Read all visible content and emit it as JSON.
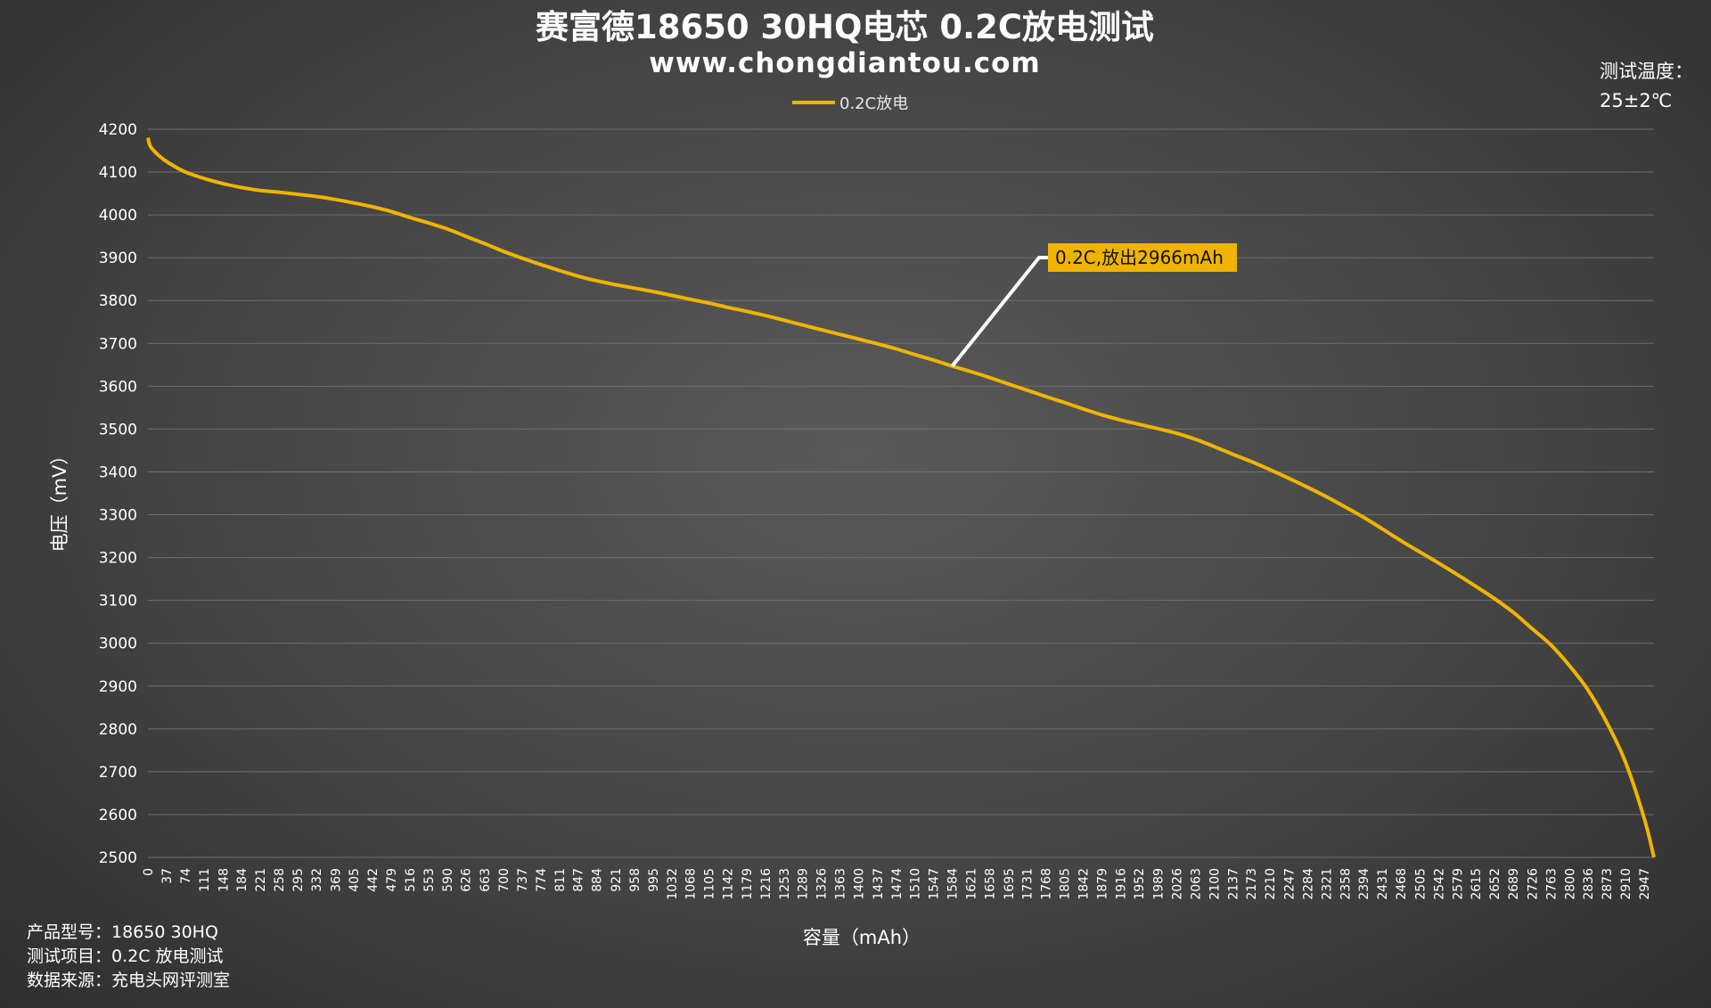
{
  "header": {
    "title": "赛富德18650 30HQ电芯 0.2C放电测试",
    "subtitle": "www.chongdiantou.com"
  },
  "temperature": {
    "label": "测试温度：",
    "value": "25±2℃"
  },
  "footer": {
    "lines": [
      "产品型号：18650 30HQ",
      "测试项目：0.2C 放电测试",
      "数据来源：充电头网评测室"
    ]
  },
  "colors": {
    "line": "#f0b400",
    "annotation_bg": "#f0b400",
    "leader": "#ffffff"
  },
  "chart_data": {
    "type": "line",
    "xlabel": "容量（mAh）",
    "ylabel": "电压（mV）",
    "ylim": [
      2500,
      4200
    ],
    "yticks": [
      4200,
      4100,
      4000,
      3900,
      3800,
      3700,
      3600,
      3500,
      3400,
      3300,
      3200,
      3100,
      3000,
      2900,
      2800,
      2700,
      2600,
      2500
    ],
    "xlim": [
      0,
      2966
    ],
    "xticks": [
      0,
      37,
      74,
      111,
      148,
      184,
      221,
      258,
      295,
      332,
      369,
      405,
      442,
      479,
      516,
      553,
      590,
      626,
      663,
      700,
      737,
      774,
      811,
      847,
      884,
      921,
      958,
      995,
      1032,
      1068,
      1105,
      1142,
      1179,
      1216,
      1253,
      1289,
      1326,
      1363,
      1400,
      1437,
      1474,
      1510,
      1547,
      1584,
      1621,
      1658,
      1695,
      1731,
      1768,
      1805,
      1842,
      1879,
      1916,
      1952,
      1989,
      2026,
      2063,
      2100,
      2137,
      2173,
      2210,
      2247,
      2284,
      2321,
      2358,
      2394,
      2431,
      2468,
      2505,
      2542,
      2579,
      2615,
      2652,
      2689,
      2726,
      2763,
      2800,
      2836,
      2873,
      2910,
      2947
    ],
    "grid": true,
    "legend_position": "top",
    "series": [
      {
        "name": "0.2C放电",
        "points": [
          [
            0,
            4180
          ],
          [
            5,
            4160
          ],
          [
            20,
            4140
          ],
          [
            40,
            4122
          ],
          [
            74,
            4100
          ],
          [
            111,
            4085
          ],
          [
            148,
            4073
          ],
          [
            184,
            4064
          ],
          [
            221,
            4057
          ],
          [
            258,
            4053
          ],
          [
            295,
            4048
          ],
          [
            332,
            4043
          ],
          [
            369,
            4036
          ],
          [
            405,
            4028
          ],
          [
            442,
            4019
          ],
          [
            479,
            4008
          ],
          [
            516,
            3994
          ],
          [
            553,
            3981
          ],
          [
            590,
            3967
          ],
          [
            626,
            3950
          ],
          [
            663,
            3933
          ],
          [
            700,
            3915
          ],
          [
            737,
            3899
          ],
          [
            774,
            3884
          ],
          [
            811,
            3870
          ],
          [
            847,
            3857
          ],
          [
            884,
            3846
          ],
          [
            921,
            3837
          ],
          [
            958,
            3829
          ],
          [
            995,
            3821
          ],
          [
            1032,
            3812
          ],
          [
            1068,
            3803
          ],
          [
            1105,
            3794
          ],
          [
            1142,
            3784
          ],
          [
            1179,
            3775
          ],
          [
            1216,
            3765
          ],
          [
            1253,
            3754
          ],
          [
            1289,
            3743
          ],
          [
            1326,
            3732
          ],
          [
            1363,
            3721
          ],
          [
            1400,
            3710
          ],
          [
            1437,
            3699
          ],
          [
            1474,
            3687
          ],
          [
            1510,
            3674
          ],
          [
            1547,
            3661
          ],
          [
            1584,
            3647
          ],
          [
            1621,
            3634
          ],
          [
            1658,
            3620
          ],
          [
            1695,
            3605
          ],
          [
            1731,
            3591
          ],
          [
            1768,
            3576
          ],
          [
            1805,
            3562
          ],
          [
            1842,
            3547
          ],
          [
            1879,
            3533
          ],
          [
            1916,
            3521
          ],
          [
            1952,
            3511
          ],
          [
            1989,
            3501
          ],
          [
            2026,
            3490
          ],
          [
            2063,
            3476
          ],
          [
            2100,
            3459
          ],
          [
            2137,
            3441
          ],
          [
            2173,
            3424
          ],
          [
            2210,
            3405
          ],
          [
            2247,
            3385
          ],
          [
            2284,
            3364
          ],
          [
            2321,
            3342
          ],
          [
            2358,
            3318
          ],
          [
            2394,
            3294
          ],
          [
            2431,
            3267
          ],
          [
            2468,
            3239
          ],
          [
            2505,
            3213
          ],
          [
            2542,
            3187
          ],
          [
            2579,
            3160
          ],
          [
            2615,
            3133
          ],
          [
            2652,
            3104
          ],
          [
            2689,
            3072
          ],
          [
            2726,
            3034
          ],
          [
            2763,
            2996
          ],
          [
            2800,
            2947
          ],
          [
            2836,
            2891
          ],
          [
            2873,
            2815
          ],
          [
            2910,
            2722
          ],
          [
            2947,
            2590
          ],
          [
            2966,
            2500
          ]
        ]
      }
    ],
    "annotation": {
      "text": "0.2C,放出2966mAh",
      "anchor_x": 1584,
      "anchor_y": 3647
    }
  }
}
